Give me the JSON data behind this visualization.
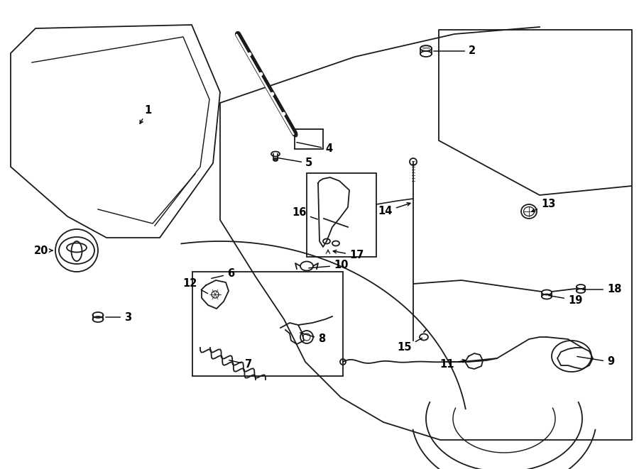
{
  "background": "#ffffff",
  "lc": "#1a1a1a",
  "lw": 1.3,
  "fig_w": 9.0,
  "fig_h": 6.61,
  "dpi": 100
}
